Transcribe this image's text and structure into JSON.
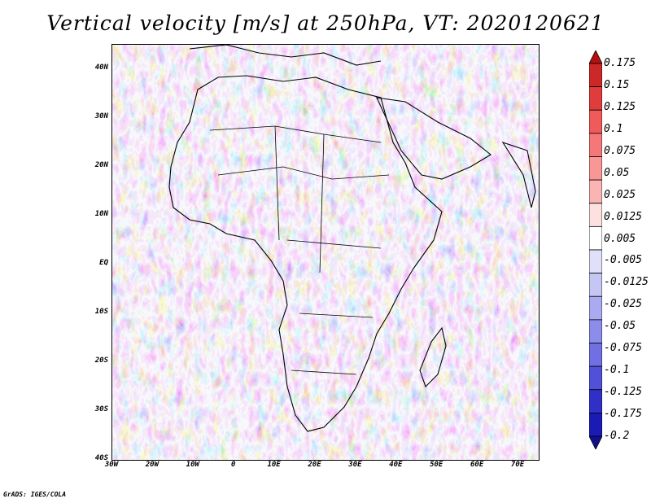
{
  "title": "Vertical velocity [m/s] at 250hPa, VT: 2020120621",
  "credit": "GrADS: IGES/COLA",
  "map": {
    "lat_labels": [
      "40N",
      "30N",
      "20N",
      "10N",
      "EQ",
      "10S",
      "20S",
      "30S",
      "40S"
    ],
    "lon_labels": [
      "30W",
      "20W",
      "10W",
      "0",
      "10E",
      "20E",
      "30E",
      "40E",
      "50E",
      "60E",
      "70E"
    ],
    "lat_range": [
      -40,
      45
    ],
    "lon_range": [
      -30,
      75
    ]
  },
  "colorbar": {
    "labels": [
      "0.175",
      "0.15",
      "0.125",
      "0.1",
      "0.075",
      "0.05",
      "0.025",
      "0.0125",
      "0.005",
      "-0.005",
      "-0.0125",
      "-0.025",
      "-0.05",
      "-0.075",
      "-0.1",
      "-0.125",
      "-0.175",
      "-0.2"
    ],
    "colors": [
      "#b41010",
      "#cc2828",
      "#e03c3c",
      "#f05a5a",
      "#f57878",
      "#f99696",
      "#fbb4b4",
      "#fde0e0",
      "#ffffff",
      "#e0e0fa",
      "#c6c6f5",
      "#aaaaf0",
      "#8c8ceb",
      "#7070e2",
      "#5050d8",
      "#3030c8",
      "#1a1ab4",
      "#10108c"
    ]
  }
}
